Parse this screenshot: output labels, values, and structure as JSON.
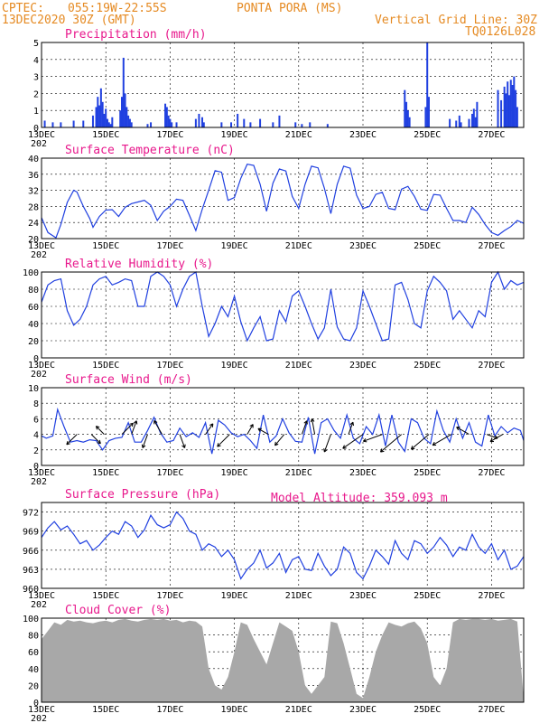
{
  "header": {
    "source": "CPTEC:",
    "coords": "055:19W-22:55S",
    "station": "PONTA PORA (MS)",
    "run": "13DEC2020 30Z (GMT)",
    "grid_note": "Vertical Grid Line: 30Z",
    "code": "TQ0126L028",
    "model_altitude": "Model Altitude: 359.093 m"
  },
  "x_ticks": [
    "13DEC",
    "15DEC",
    "17DEC",
    "19DEC",
    "21DEC",
    "23DEC",
    "25DEC",
    "27DEC"
  ],
  "year_fragment": "202",
  "colors": {
    "series": "#2040e0",
    "title": "#e8188c",
    "header": "#e58a22",
    "cloud": "#a8a8a8"
  },
  "chart_data": [
    {
      "type": "bar",
      "title": "Precipitation (mm/h)",
      "ylim": [
        0,
        5
      ],
      "yticks": [
        "0",
        "1",
        "2",
        "3",
        "4",
        "5"
      ],
      "x_unit": "days since 13DEC",
      "x": [
        0.1,
        0.35,
        0.6,
        1.0,
        1.3,
        1.6,
        1.7,
        1.75,
        1.8,
        1.85,
        1.9,
        1.95,
        2.0,
        2.05,
        2.1,
        2.15,
        2.2,
        2.45,
        2.5,
        2.55,
        2.6,
        2.65,
        2.7,
        2.75,
        2.8,
        3.3,
        3.4,
        3.85,
        3.9,
        3.95,
        4.0,
        4.05,
        4.2,
        4.8,
        4.9,
        5.0,
        5.05,
        5.6,
        5.9,
        6.1,
        6.3,
        6.5,
        6.8,
        7.2,
        7.4,
        7.9,
        8.1,
        8.35,
        8.9,
        11.3,
        11.35,
        11.4,
        11.45,
        11.95,
        12.0,
        12.05,
        12.7,
        12.9,
        13.0,
        13.05,
        13.3,
        13.4,
        13.45,
        13.5,
        13.55,
        14.2,
        14.3,
        14.4,
        14.45,
        14.5,
        14.55,
        14.6,
        14.65,
        14.7,
        14.75,
        14.8
      ],
      "values": [
        0.4,
        0.3,
        0.3,
        0.4,
        0.4,
        0.7,
        1.2,
        1.8,
        1.3,
        2.3,
        1.5,
        0.8,
        1.1,
        0.5,
        0.3,
        0.2,
        0.6,
        1.0,
        1.8,
        4.1,
        2.0,
        1.2,
        0.7,
        0.5,
        0.3,
        0.2,
        0.3,
        1.4,
        1.2,
        0.7,
        0.5,
        0.3,
        0.3,
        0.5,
        0.8,
        0.6,
        0.3,
        0.3,
        0.3,
        0.8,
        0.5,
        0.3,
        0.5,
        0.3,
        0.7,
        0.3,
        0.2,
        0.3,
        0.2,
        2.2,
        1.5,
        1.0,
        0.6,
        1.2,
        5.0,
        1.8,
        0.5,
        0.4,
        0.7,
        0.3,
        0.5,
        0.8,
        1.1,
        0.6,
        1.5,
        2.2,
        1.6,
        2.4,
        2.0,
        2.7,
        1.9,
        2.8,
        2.5,
        3.0,
        2.2,
        1.2
      ]
    },
    {
      "type": "line",
      "title": "Surface Temperature (nC)",
      "ylim": [
        20,
        40
      ],
      "yticks": [
        "20",
        "24",
        "28",
        "32",
        "36",
        "40"
      ],
      "x": [
        0,
        0.2,
        0.45,
        0.6,
        0.8,
        1.0,
        1.1,
        1.3,
        1.5,
        1.6,
        1.8,
        2.0,
        2.2,
        2.4,
        2.6,
        2.8,
        3.0,
        3.2,
        3.4,
        3.6,
        3.8,
        4.0,
        4.2,
        4.4,
        4.6,
        4.8,
        5.0,
        5.2,
        5.4,
        5.6,
        5.8,
        6.0,
        6.2,
        6.4,
        6.6,
        6.8,
        7.0,
        7.2,
        7.4,
        7.6,
        7.8,
        8.0,
        8.2,
        8.4,
        8.6,
        8.8,
        9.0,
        9.2,
        9.4,
        9.6,
        9.8,
        10.0,
        10.2,
        10.4,
        10.6,
        10.8,
        11.0,
        11.2,
        11.4,
        11.6,
        11.8,
        12.0,
        12.2,
        12.4,
        12.6,
        12.8,
        13.0,
        13.2,
        13.4,
        13.6,
        13.8,
        14.0,
        14.2,
        14.4,
        14.6,
        14.8,
        15.0
      ],
      "values": [
        25.2,
        21.5,
        20.2,
        23.5,
        29,
        32,
        31.6,
        28,
        25,
        22.8,
        25.5,
        27.1,
        27.2,
        25.5,
        27.8,
        28.7,
        29.1,
        29.5,
        28.3,
        24.5,
        26.8,
        28,
        29.8,
        29.5,
        25.8,
        22,
        27.3,
        32,
        36.9,
        36.5,
        29.5,
        30.2,
        35,
        38.5,
        38.2,
        33.5,
        26.8,
        33.8,
        37.3,
        36.8,
        30.5,
        27.5,
        33.5,
        38,
        37.6,
        32.5,
        26.2,
        33.5,
        38,
        37.5,
        30.8,
        27.5,
        28,
        31,
        31.5,
        27.5,
        27.2,
        32.3,
        33,
        30.5,
        27.3,
        27,
        31,
        30.8,
        27.5,
        24.5,
        24.5,
        24,
        27.8,
        26,
        23.5,
        21.5,
        20.8,
        22,
        23,
        24.5,
        23.8
      ]
    },
    {
      "type": "line",
      "title": "Relative Humidity (%)",
      "ylim": [
        0,
        100
      ],
      "yticks": [
        "0",
        "20",
        "40",
        "60",
        "80",
        "100"
      ],
      "x": [
        0,
        0.2,
        0.4,
        0.6,
        0.8,
        1.0,
        1.2,
        1.4,
        1.6,
        1.8,
        2.0,
        2.2,
        2.4,
        2.6,
        2.8,
        3.0,
        3.2,
        3.4,
        3.6,
        3.8,
        4.0,
        4.2,
        4.4,
        4.6,
        4.8,
        5.0,
        5.2,
        5.4,
        5.6,
        5.8,
        6.0,
        6.2,
        6.4,
        6.6,
        6.8,
        7.0,
        7.2,
        7.4,
        7.6,
        7.8,
        8.0,
        8.2,
        8.4,
        8.6,
        8.8,
        9.0,
        9.2,
        9.4,
        9.6,
        9.8,
        10.0,
        10.2,
        10.4,
        10.6,
        10.8,
        11.0,
        11.2,
        11.4,
        11.6,
        11.8,
        12.0,
        12.2,
        12.4,
        12.6,
        12.8,
        13.0,
        13.2,
        13.4,
        13.6,
        13.8,
        14.0,
        14.2,
        14.4,
        14.6,
        14.8,
        15.0
      ],
      "values": [
        65,
        85,
        90,
        92,
        55,
        38,
        45,
        60,
        85,
        92,
        95,
        85,
        88,
        92,
        90,
        60,
        60,
        95,
        100,
        95,
        85,
        60,
        80,
        95,
        100,
        60,
        25,
        40,
        60,
        48,
        72,
        42,
        20,
        35,
        48,
        20,
        22,
        55,
        42,
        72,
        78,
        60,
        40,
        22,
        35,
        80,
        36,
        22,
        20,
        35,
        78,
        60,
        40,
        20,
        22,
        85,
        88,
        68,
        40,
        35,
        78,
        95,
        88,
        78,
        45,
        55,
        45,
        35,
        55,
        48,
        88,
        100,
        80,
        90,
        85,
        88
      ]
    },
    {
      "type": "line",
      "title": "Surface Wind (m/s)",
      "ylim": [
        0,
        10
      ],
      "yticks": [
        "0",
        "2",
        "4",
        "6",
        "8",
        "10"
      ],
      "x": [
        0,
        0.15,
        0.35,
        0.5,
        0.7,
        0.9,
        1.1,
        1.3,
        1.5,
        1.7,
        1.9,
        2.1,
        2.3,
        2.5,
        2.7,
        2.9,
        3.1,
        3.3,
        3.5,
        3.7,
        3.9,
        4.1,
        4.3,
        4.5,
        4.7,
        4.9,
        5.1,
        5.3,
        5.5,
        5.7,
        5.9,
        6.1,
        6.3,
        6.5,
        6.7,
        6.9,
        7.1,
        7.3,
        7.5,
        7.7,
        7.9,
        8.1,
        8.3,
        8.5,
        8.7,
        8.9,
        9.1,
        9.3,
        9.5,
        9.7,
        9.9,
        10.1,
        10.3,
        10.5,
        10.7,
        10.9,
        11.1,
        11.3,
        11.5,
        11.7,
        11.9,
        12.1,
        12.3,
        12.5,
        12.7,
        12.9,
        13.1,
        13.3,
        13.5,
        13.7,
        13.9,
        14.1,
        14.3,
        14.5,
        14.7,
        14.9,
        15.0
      ],
      "values": [
        3.8,
        3.5,
        3.8,
        7.2,
        5,
        3,
        3.2,
        3.0,
        3.3,
        3.2,
        2.0,
        3.2,
        3.5,
        3.6,
        5.5,
        3.0,
        3.0,
        4.5,
        6.2,
        4.2,
        3.0,
        3.2,
        4.8,
        3.7,
        4.2,
        3.6,
        5.5,
        1.5,
        5.8,
        5.2,
        4.2,
        3.7,
        4.0,
        3.2,
        2.2,
        6.5,
        3.0,
        3.8,
        6.0,
        4.2,
        3.1,
        3.0,
        6.2,
        1.5,
        5.5,
        6.0,
        4.5,
        3.5,
        6.5,
        3.5,
        2.8,
        5.0,
        4.0,
        6.5,
        2.5,
        6.5,
        3.0,
        1.8,
        6.0,
        5.5,
        3.5,
        2.8,
        7.0,
        4.5,
        3.0,
        6.0,
        3.5,
        5.5,
        3.0,
        2.5,
        6.5,
        3.8,
        5.0,
        4.2,
        4.8,
        4.5,
        3.2
      ]
    },
    {
      "type": "line",
      "title": "Surface Pressure (hPa)",
      "ylim": [
        960,
        973.5
      ],
      "yticks": [
        "960",
        "963",
        "966",
        "969",
        "972"
      ],
      "x": [
        0,
        0.2,
        0.4,
        0.6,
        0.8,
        1.0,
        1.2,
        1.4,
        1.6,
        1.8,
        2.0,
        2.2,
        2.4,
        2.6,
        2.8,
        3.0,
        3.2,
        3.4,
        3.6,
        3.8,
        4.0,
        4.2,
        4.4,
        4.6,
        4.8,
        5.0,
        5.2,
        5.4,
        5.6,
        5.8,
        6.0,
        6.2,
        6.4,
        6.6,
        6.8,
        7.0,
        7.2,
        7.4,
        7.6,
        7.8,
        8.0,
        8.2,
        8.4,
        8.6,
        8.8,
        9.0,
        9.2,
        9.4,
        9.6,
        9.8,
        10.0,
        10.2,
        10.4,
        10.6,
        10.8,
        11.0,
        11.2,
        11.4,
        11.6,
        11.8,
        12.0,
        12.2,
        12.4,
        12.6,
        12.8,
        13.0,
        13.2,
        13.4,
        13.6,
        13.8,
        14.0,
        14.2,
        14.4,
        14.6,
        14.8,
        15.0
      ],
      "values": [
        968,
        969.5,
        970.5,
        969.2,
        969.8,
        968.5,
        967,
        967.5,
        966,
        966.8,
        968,
        969,
        968.5,
        970.5,
        969.8,
        968,
        969.2,
        971.5,
        970,
        969.5,
        970,
        972,
        971,
        969,
        968.5,
        966,
        967,
        966.5,
        965,
        966,
        964.5,
        961.5,
        963,
        964,
        966,
        963.2,
        964,
        965.5,
        962.5,
        964.5,
        965,
        963,
        962.8,
        965.5,
        963.5,
        962,
        963,
        966.5,
        965.5,
        962.5,
        961.5,
        963.5,
        966,
        965,
        963.8,
        967.5,
        965.5,
        964.5,
        967.5,
        967,
        965.5,
        966.5,
        968,
        966.8,
        965,
        966.5,
        966,
        968.5,
        966.5,
        965.5,
        967,
        964.5,
        966,
        963,
        963.5,
        965
      ]
    },
    {
      "type": "area",
      "title": "Cloud Cover (%)",
      "ylim": [
        0,
        100
      ],
      "yticks": [
        "0",
        "20",
        "40",
        "60",
        "80",
        "100"
      ],
      "x": [
        0,
        0.2,
        0.4,
        0.6,
        0.8,
        1.0,
        1.2,
        1.4,
        1.6,
        1.8,
        2.0,
        2.2,
        2.4,
        2.6,
        2.8,
        3.0,
        3.2,
        3.4,
        3.6,
        3.8,
        4.0,
        4.2,
        4.4,
        4.6,
        4.8,
        5.0,
        5.2,
        5.4,
        5.6,
        5.8,
        6.0,
        6.2,
        6.4,
        6.6,
        6.8,
        7.0,
        7.2,
        7.4,
        7.6,
        7.8,
        8.0,
        8.2,
        8.4,
        8.6,
        8.8,
        9.0,
        9.2,
        9.4,
        9.6,
        9.8,
        10.0,
        10.2,
        10.4,
        10.6,
        10.8,
        11.0,
        11.2,
        11.4,
        11.6,
        11.8,
        12.0,
        12.2,
        12.4,
        12.6,
        12.8,
        13.0,
        13.2,
        13.4,
        13.6,
        13.8,
        14.0,
        14.2,
        14.4,
        14.6,
        14.8,
        15.0
      ],
      "values": [
        75,
        85,
        95,
        92,
        98,
        96,
        97,
        95,
        94,
        96,
        97,
        95,
        98,
        99,
        97,
        96,
        98,
        99,
        98,
        99,
        97,
        98,
        95,
        97,
        96,
        90,
        40,
        20,
        15,
        30,
        60,
        95,
        92,
        75,
        60,
        45,
        70,
        95,
        90,
        85,
        60,
        20,
        10,
        20,
        30,
        96,
        94,
        70,
        40,
        10,
        5,
        30,
        60,
        80,
        95,
        92,
        90,
        94,
        96,
        88,
        70,
        30,
        20,
        40,
        95,
        99,
        98,
        99,
        99,
        98,
        99,
        97,
        98,
        99,
        96,
        5
      ]
    }
  ],
  "wind_vectors": [
    {
      "day": 1.1,
      "speed": 5.0,
      "dir_to_deg": 225
    },
    {
      "day": 1.55,
      "speed": 4.5,
      "dir_to_deg": 135
    },
    {
      "day": 1.95,
      "speed": 4.0,
      "dir_to_deg": 315
    },
    {
      "day": 2.5,
      "speed": 5.5,
      "dir_to_deg": 45
    },
    {
      "day": 2.8,
      "speed": 5.0,
      "dir_to_deg": 20
    },
    {
      "day": 3.3,
      "speed": 5.0,
      "dir_to_deg": 200
    },
    {
      "day": 3.75,
      "speed": 5.5,
      "dir_to_deg": 330
    },
    {
      "day": 4.3,
      "speed": 5.0,
      "dir_to_deg": 160
    },
    {
      "day": 5.1,
      "speed": 4.5,
      "dir_to_deg": 35
    },
    {
      "day": 5.85,
      "speed": 6.0,
      "dir_to_deg": 225
    },
    {
      "day": 6.4,
      "speed": 4.0,
      "dir_to_deg": 30
    },
    {
      "day": 7.05,
      "speed": 4.0,
      "dir_to_deg": 300
    },
    {
      "day": 7.55,
      "speed": 5.0,
      "dir_to_deg": 220
    },
    {
      "day": 8.1,
      "speed": 5.0,
      "dir_to_deg": 20
    },
    {
      "day": 8.5,
      "speed": 5.5,
      "dir_to_deg": 350
    },
    {
      "day": 9.0,
      "speed": 6.5,
      "dir_to_deg": 200
    },
    {
      "day": 9.55,
      "speed": 4.5,
      "dir_to_deg": 20
    },
    {
      "day": 10.0,
      "speed": 8.5,
      "dir_to_deg": 235
    },
    {
      "day": 10.6,
      "speed": 7.0,
      "dir_to_deg": 250
    },
    {
      "day": 11.2,
      "speed": 9.5,
      "dir_to_deg": 230
    },
    {
      "day": 12.05,
      "speed": 8.0,
      "dir_to_deg": 230
    },
    {
      "day": 12.75,
      "speed": 7.5,
      "dir_to_deg": 240
    },
    {
      "day": 13.3,
      "speed": 5.0,
      "dir_to_deg": 300
    },
    {
      "day": 13.85,
      "speed": 4.0,
      "dir_to_deg": 110
    },
    {
      "day": 14.35,
      "speed": 5.0,
      "dir_to_deg": 240
    }
  ]
}
